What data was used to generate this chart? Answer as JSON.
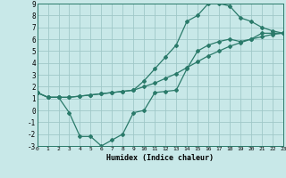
{
  "background_color": "#c8e8e8",
  "grid_color": "#a0c8c8",
  "line_color": "#2a7a6a",
  "xlabel": "Humidex (Indice chaleur)",
  "xlim": [
    0,
    23
  ],
  "ylim": [
    -3,
    9
  ],
  "xticks": [
    0,
    1,
    2,
    3,
    4,
    5,
    6,
    7,
    8,
    9,
    10,
    11,
    12,
    13,
    14,
    15,
    16,
    17,
    18,
    19,
    20,
    21,
    22,
    23
  ],
  "yticks": [
    -3,
    -2,
    -1,
    0,
    1,
    2,
    3,
    4,
    5,
    6,
    7,
    8,
    9
  ],
  "curve1_x": [
    0,
    1,
    2,
    3,
    4,
    5,
    6,
    7,
    8,
    9,
    10,
    11,
    12,
    13,
    14,
    15,
    16,
    17,
    18,
    19,
    20,
    21,
    22,
    23
  ],
  "curve1_y": [
    1.5,
    1.1,
    1.1,
    1.1,
    1.2,
    1.3,
    1.4,
    1.5,
    1.6,
    1.7,
    2.0,
    2.3,
    2.7,
    3.1,
    3.6,
    4.1,
    4.6,
    5.0,
    5.4,
    5.7,
    6.0,
    6.2,
    6.4,
    6.5
  ],
  "curve2_x": [
    0,
    1,
    2,
    3,
    4,
    5,
    6,
    7,
    8,
    9,
    10,
    11,
    12,
    13,
    14,
    15,
    16,
    17,
    18,
    19,
    20,
    21,
    22,
    23
  ],
  "curve2_y": [
    1.5,
    1.1,
    1.1,
    1.1,
    1.2,
    1.3,
    1.4,
    1.5,
    1.6,
    1.7,
    2.5,
    3.5,
    4.5,
    5.5,
    7.5,
    8.0,
    9.0,
    9.0,
    8.8,
    7.8,
    7.5,
    7.0,
    6.7,
    6.5
  ],
  "curve3_x": [
    0,
    1,
    2,
    3,
    4,
    5,
    6,
    7,
    8,
    9,
    10,
    11,
    12,
    13,
    14,
    15,
    16,
    17,
    18,
    19,
    20,
    21,
    22,
    23
  ],
  "curve3_y": [
    1.5,
    1.1,
    1.1,
    -0.2,
    -2.2,
    -2.2,
    -3.0,
    -2.5,
    -2.0,
    -0.2,
    0.0,
    1.5,
    1.6,
    1.7,
    3.5,
    5.0,
    5.5,
    5.8,
    6.0,
    5.8,
    6.0,
    6.5,
    6.5,
    6.5
  ]
}
